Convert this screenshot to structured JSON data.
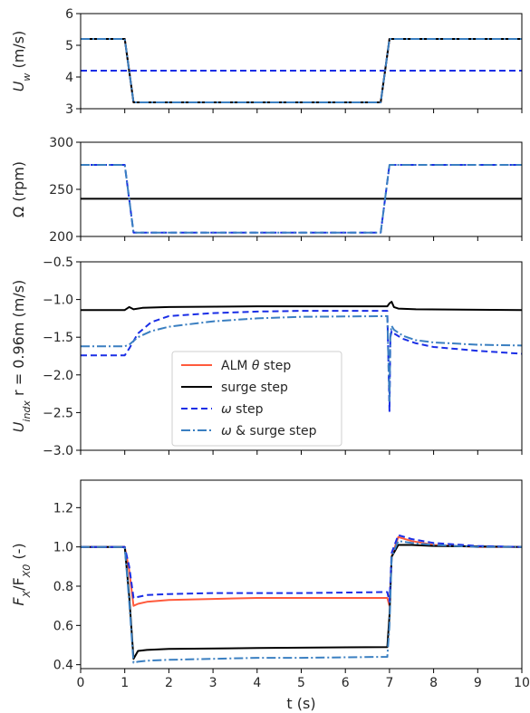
{
  "chart_data": [
    {
      "type": "line",
      "ylabel_main": "U",
      "ylabel_sub": "w",
      "ylabel_unit": " (m/s)",
      "xlim": [
        0,
        10
      ],
      "ylim": [
        3,
        6
      ],
      "yticks": [
        3,
        4,
        5,
        6
      ],
      "yticklabels": [
        "3",
        "4",
        "5",
        "6"
      ],
      "xticks": [
        0,
        1,
        2,
        3,
        4,
        5,
        6,
        7,
        8,
        9,
        10
      ],
      "series": [
        {
          "style": "alm",
          "x": [
            0,
            1,
            1.2,
            6.8,
            7,
            10
          ],
          "y": [
            5.2,
            5.2,
            3.2,
            3.2,
            5.2,
            5.2
          ]
        },
        {
          "style": "surge",
          "x": [
            0,
            1,
            1.2,
            6.8,
            7,
            10
          ],
          "y": [
            5.2,
            5.2,
            3.2,
            3.2,
            5.2,
            5.2
          ]
        },
        {
          "style": "omega",
          "x": [
            0,
            10
          ],
          "y": [
            4.2,
            4.2
          ]
        },
        {
          "style": "omega_surge",
          "x": [
            0,
            1,
            1.2,
            6.8,
            7,
            10
          ],
          "y": [
            5.2,
            5.2,
            3.2,
            3.2,
            5.2,
            5.2
          ]
        }
      ]
    },
    {
      "type": "line",
      "ylabel_main": "Ω (rpm)",
      "ylabel_sub": "",
      "ylabel_unit": "",
      "xlim": [
        0,
        10
      ],
      "ylim": [
        200,
        300
      ],
      "yticks": [
        200,
        250,
        300
      ],
      "yticklabels": [
        "200",
        "250",
        "300"
      ],
      "xticks": [
        0,
        1,
        2,
        3,
        4,
        5,
        6,
        7,
        8,
        9,
        10
      ],
      "series": [
        {
          "style": "surge",
          "x": [
            0,
            10
          ],
          "y": [
            240,
            240
          ]
        },
        {
          "style": "omega",
          "x": [
            0,
            1,
            1.2,
            6.8,
            7,
            10
          ],
          "y": [
            276,
            276,
            204,
            204,
            276,
            276
          ]
        },
        {
          "style": "omega_surge",
          "x": [
            0,
            1,
            1.2,
            6.8,
            7,
            10
          ],
          "y": [
            276,
            276,
            204,
            204,
            276,
            276
          ]
        }
      ]
    },
    {
      "type": "line",
      "ylabel_main": "U",
      "ylabel_sub": "indx",
      "ylabel_unit": " r = 0.96m (m/s)",
      "xlim": [
        0,
        10
      ],
      "ylim": [
        -3.0,
        -0.5
      ],
      "yticks": [
        -3.0,
        -2.5,
        -2.0,
        -1.5,
        -1.0,
        -0.5
      ],
      "yticklabels": [
        "−3.0",
        "−2.5",
        "−2.0",
        "−1.5",
        "−1.0",
        "−0.5"
      ],
      "xticks": [
        0,
        1,
        2,
        3,
        4,
        5,
        6,
        7,
        8,
        9,
        10
      ],
      "legend": {
        "placement": "center-left",
        "entries": [
          {
            "style": "alm",
            "label_pre": "ALM ",
            "label_greek": "θ",
            "label_post": " step"
          },
          {
            "style": "surge",
            "label_pre": "surge step",
            "label_greek": "",
            "label_post": ""
          },
          {
            "style": "omega",
            "label_pre": "",
            "label_greek": "ω",
            "label_post": " step"
          },
          {
            "style": "omega_surge",
            "label_pre": "",
            "label_greek": "ω",
            "label_post": " & surge step"
          }
        ]
      },
      "series": [
        {
          "style": "surge",
          "x": [
            0,
            1,
            1.1,
            1.2,
            1.4,
            2,
            4,
            6.95,
            7.0,
            7.05,
            7.1,
            7.2,
            7.6,
            10
          ],
          "y": [
            -1.14,
            -1.14,
            -1.1,
            -1.13,
            -1.11,
            -1.1,
            -1.09,
            -1.09,
            -1.05,
            -1.03,
            -1.1,
            -1.12,
            -1.13,
            -1.14
          ]
        },
        {
          "style": "omega",
          "x": [
            0,
            1,
            1.1,
            1.3,
            1.6,
            2,
            3,
            4,
            5,
            6.95,
            7.0,
            7.02,
            7.05,
            7.1,
            7.3,
            7.6,
            8,
            9,
            10
          ],
          "y": [
            -1.74,
            -1.74,
            -1.65,
            -1.45,
            -1.3,
            -1.22,
            -1.18,
            -1.16,
            -1.15,
            -1.15,
            -2.48,
            -1.5,
            -1.42,
            -1.45,
            -1.52,
            -1.58,
            -1.63,
            -1.68,
            -1.72
          ]
        },
        {
          "style": "omega_surge",
          "x": [
            0,
            1,
            1.1,
            1.3,
            1.6,
            2,
            3,
            4,
            5,
            6.95,
            7.0,
            7.02,
            7.05,
            7.1,
            7.3,
            7.6,
            8,
            9,
            10
          ],
          "y": [
            -1.62,
            -1.62,
            -1.6,
            -1.5,
            -1.42,
            -1.36,
            -1.29,
            -1.25,
            -1.23,
            -1.22,
            -2.35,
            -1.45,
            -1.35,
            -1.4,
            -1.48,
            -1.54,
            -1.57,
            -1.6,
            -1.61
          ]
        }
      ]
    },
    {
      "type": "line",
      "ylabel_main": "F",
      "ylabel_sub": "X",
      "ylabel_unit": "/F",
      "ylabel_sub2": "X0",
      "ylabel_tail": " (-)",
      "xlabel": "t (s)",
      "xlim": [
        0,
        10
      ],
      "ylim": [
        0.38,
        1.34
      ],
      "yticks": [
        0.4,
        0.6,
        0.8,
        1.0,
        1.2
      ],
      "yticklabels": [
        "0.4",
        "0.6",
        "0.8",
        "1.0",
        "1.2"
      ],
      "xticks": [
        0,
        1,
        2,
        3,
        4,
        5,
        6,
        7,
        8,
        9,
        10
      ],
      "xticklabels": [
        "0",
        "1",
        "2",
        "3",
        "4",
        "5",
        "6",
        "7",
        "8",
        "9",
        "10"
      ],
      "series": [
        {
          "style": "alm",
          "x": [
            0,
            1,
            1.1,
            1.2,
            1.3,
            1.5,
            2,
            3,
            4,
            5,
            6.95,
            7.0,
            7.05,
            7.2,
            7.5,
            8,
            9,
            10
          ],
          "y": [
            1.0,
            1.0,
            0.88,
            0.7,
            0.71,
            0.72,
            0.73,
            0.735,
            0.74,
            0.74,
            0.74,
            0.7,
            0.95,
            1.05,
            1.03,
            1.01,
            1.0,
            1.0
          ]
        },
        {
          "style": "surge",
          "x": [
            0,
            1,
            1.1,
            1.2,
            1.3,
            1.5,
            2,
            4,
            6.95,
            7.0,
            7.05,
            7.2,
            7.5,
            8,
            10
          ],
          "y": [
            1.0,
            1.0,
            0.75,
            0.43,
            0.47,
            0.475,
            0.48,
            0.485,
            0.49,
            0.65,
            0.95,
            1.01,
            1.01,
            1.005,
            1.0
          ]
        },
        {
          "style": "omega",
          "x": [
            0,
            1,
            1.1,
            1.2,
            1.3,
            1.5,
            2,
            3,
            4,
            5,
            6.95,
            7.0,
            7.05,
            7.2,
            7.5,
            8,
            9,
            10
          ],
          "y": [
            1.0,
            1.0,
            0.9,
            0.74,
            0.745,
            0.755,
            0.76,
            0.765,
            0.765,
            0.765,
            0.77,
            0.72,
            0.97,
            1.06,
            1.04,
            1.02,
            1.005,
            1.0
          ]
        },
        {
          "style": "omega_surge",
          "x": [
            0,
            1,
            1.1,
            1.2,
            1.3,
            1.5,
            2,
            3,
            4,
            5,
            6.95,
            7.0,
            7.05,
            7.2,
            7.5,
            8,
            9,
            10
          ],
          "y": [
            1.0,
            1.0,
            0.72,
            0.41,
            0.415,
            0.42,
            0.425,
            0.43,
            0.435,
            0.435,
            0.44,
            0.6,
            0.95,
            1.03,
            1.02,
            1.01,
            1.0,
            1.0
          ]
        }
      ]
    }
  ],
  "styles": {
    "alm": {
      "color": "#ff5a3c",
      "dash": "",
      "width": 2
    },
    "surge": {
      "color": "#000000",
      "dash": "",
      "width": 2
    },
    "omega": {
      "color": "#1a2ee6",
      "dash": "7 4",
      "width": 2
    },
    "omega_surge": {
      "color": "#3a7fc1",
      "dash": "10 3 2 3",
      "width": 2
    }
  }
}
